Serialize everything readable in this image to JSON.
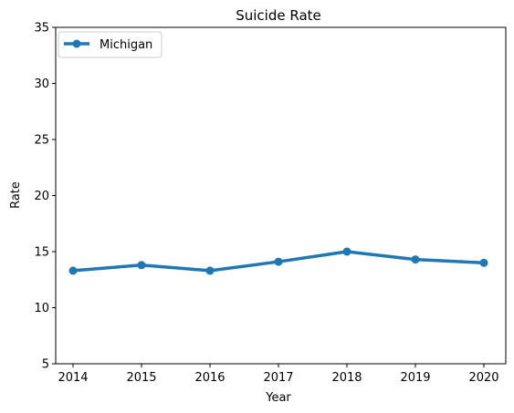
{
  "chart_data": {
    "type": "line",
    "title": "Suicide Rate",
    "xlabel": "Year",
    "ylabel": "Rate",
    "x": [
      2014,
      2015,
      2016,
      2017,
      2018,
      2019,
      2020
    ],
    "x_tick_labels": [
      "2014",
      "2015",
      "2016",
      "2017",
      "2018",
      "2019",
      "2020"
    ],
    "ylim": [
      5,
      35
    ],
    "y_ticks": [
      5,
      10,
      15,
      20,
      25,
      30,
      35
    ],
    "y_tick_labels": [
      "5",
      "10",
      "15",
      "20",
      "25",
      "30",
      "35"
    ],
    "grid": false,
    "legend_position": "top-left",
    "series": [
      {
        "name": "Michigan",
        "color": "#1f77b4",
        "marker": "circle",
        "values": [
          13.3,
          13.8,
          13.3,
          14.1,
          15.0,
          14.3,
          14.0
        ]
      }
    ]
  }
}
